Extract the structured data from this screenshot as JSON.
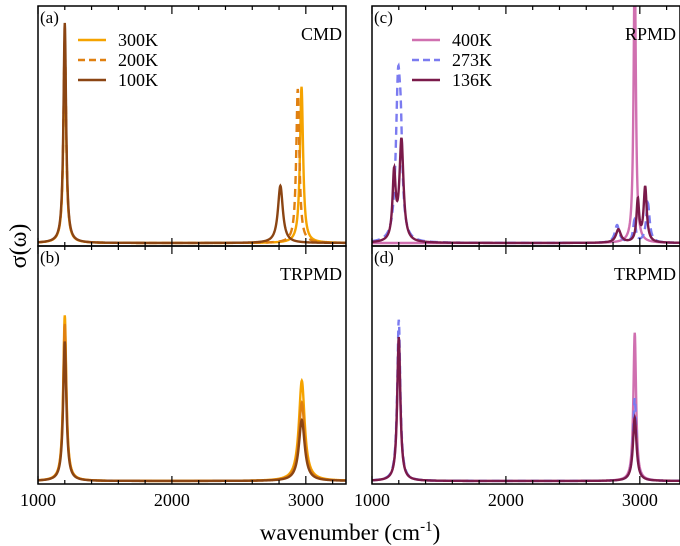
{
  "figure": {
    "ylabel": "σ(ω)",
    "xlabel_main": "wavenumber (cm",
    "xlabel_sup": "-1",
    "xlabel_close": ")"
  },
  "chart_data": [
    {
      "type": "line",
      "panel_letter": "(a)",
      "method": "CMD",
      "xlim": [
        1000,
        3300
      ],
      "ylim": [
        0,
        1.0
      ],
      "x_ticks": [],
      "legend_position": "top-left",
      "series": [
        {
          "name": "300K",
          "color": "#f5a300",
          "dash": "solid",
          "peaks": [
            [
              1200,
              0.9,
              12
            ],
            [
              2968,
              0.71,
              14
            ]
          ]
        },
        {
          "name": "200K",
          "color": "#e08010",
          "dash": "dashed",
          "peaks": [
            [
              1200,
              0.93,
              12
            ],
            [
              2940,
              0.7,
              14
            ]
          ]
        },
        {
          "name": "100K",
          "color": "#8b4513",
          "dash": "solid",
          "peaks": [
            [
              1200,
              1.0,
              12
            ],
            [
              2810,
              0.26,
              22
            ]
          ]
        }
      ]
    },
    {
      "type": "line",
      "panel_letter": "(c)",
      "method": "RPMD",
      "xlim": [
        1000,
        3300
      ],
      "ylim": [
        0,
        1.0
      ],
      "x_ticks": [],
      "legend_position": "top-left",
      "series": [
        {
          "name": "400K",
          "color": "#d070b0",
          "dash": "solid",
          "peaks": [
            [
              2962,
              1.3,
              10
            ]
          ]
        },
        {
          "name": "273K",
          "color": "#7b7bf0",
          "dash": "dashed",
          "peaks": [
            [
              1195,
              0.7,
              20
            ],
            [
              1215,
              0.3,
              14
            ],
            [
              2830,
              0.08,
              20
            ],
            [
              2960,
              0.1,
              12
            ],
            [
              3060,
              0.18,
              16
            ]
          ]
        },
        {
          "name": "136K",
          "color": "#7a1a4a",
          "dash": "solid",
          "peaks": [
            [
              1165,
              0.3,
              14
            ],
            [
              1220,
              0.46,
              18
            ],
            [
              2840,
              0.06,
              22
            ],
            [
              2985,
              0.19,
              12
            ],
            [
              3040,
              0.25,
              14
            ]
          ]
        }
      ]
    },
    {
      "type": "line",
      "panel_letter": "(b)",
      "method": "TRPMD",
      "xlim": [
        1000,
        3300
      ],
      "ylim": [
        0,
        1.0
      ],
      "x_ticks": [
        1000,
        2000,
        3000
      ],
      "series": [
        {
          "color": "#f5a300",
          "dash": "solid",
          "peaks": [
            [
              1200,
              0.76,
              14
            ],
            [
              2970,
              0.46,
              26
            ]
          ]
        },
        {
          "color": "#e08010",
          "dash": "solid",
          "peaks": [
            [
              1200,
              0.72,
              14
            ],
            [
              2970,
              0.36,
              26
            ]
          ]
        },
        {
          "color": "#8b4513",
          "dash": "solid",
          "peaks": [
            [
              1200,
              0.64,
              14
            ],
            [
              2970,
              0.28,
              26
            ]
          ]
        }
      ]
    },
    {
      "type": "line",
      "panel_letter": "(d)",
      "method": "TRPMD",
      "xlim": [
        1000,
        3300
      ],
      "ylim": [
        0,
        1.0
      ],
      "x_ticks": [
        1000,
        2000,
        3000
      ],
      "series": [
        {
          "color": "#d070b0",
          "dash": "solid",
          "peaks": [
            [
              1200,
              0.65,
              14
            ],
            [
              2962,
              0.68,
              12
            ]
          ]
        },
        {
          "color": "#7b7bf0",
          "dash": "dashed",
          "peaks": [
            [
              1200,
              0.74,
              14
            ],
            [
              2962,
              0.38,
              14
            ]
          ]
        },
        {
          "color": "#7a1a4a",
          "dash": "solid",
          "peaks": [
            [
              1200,
              0.66,
              14
            ],
            [
              2962,
              0.29,
              16
            ]
          ]
        }
      ]
    }
  ]
}
